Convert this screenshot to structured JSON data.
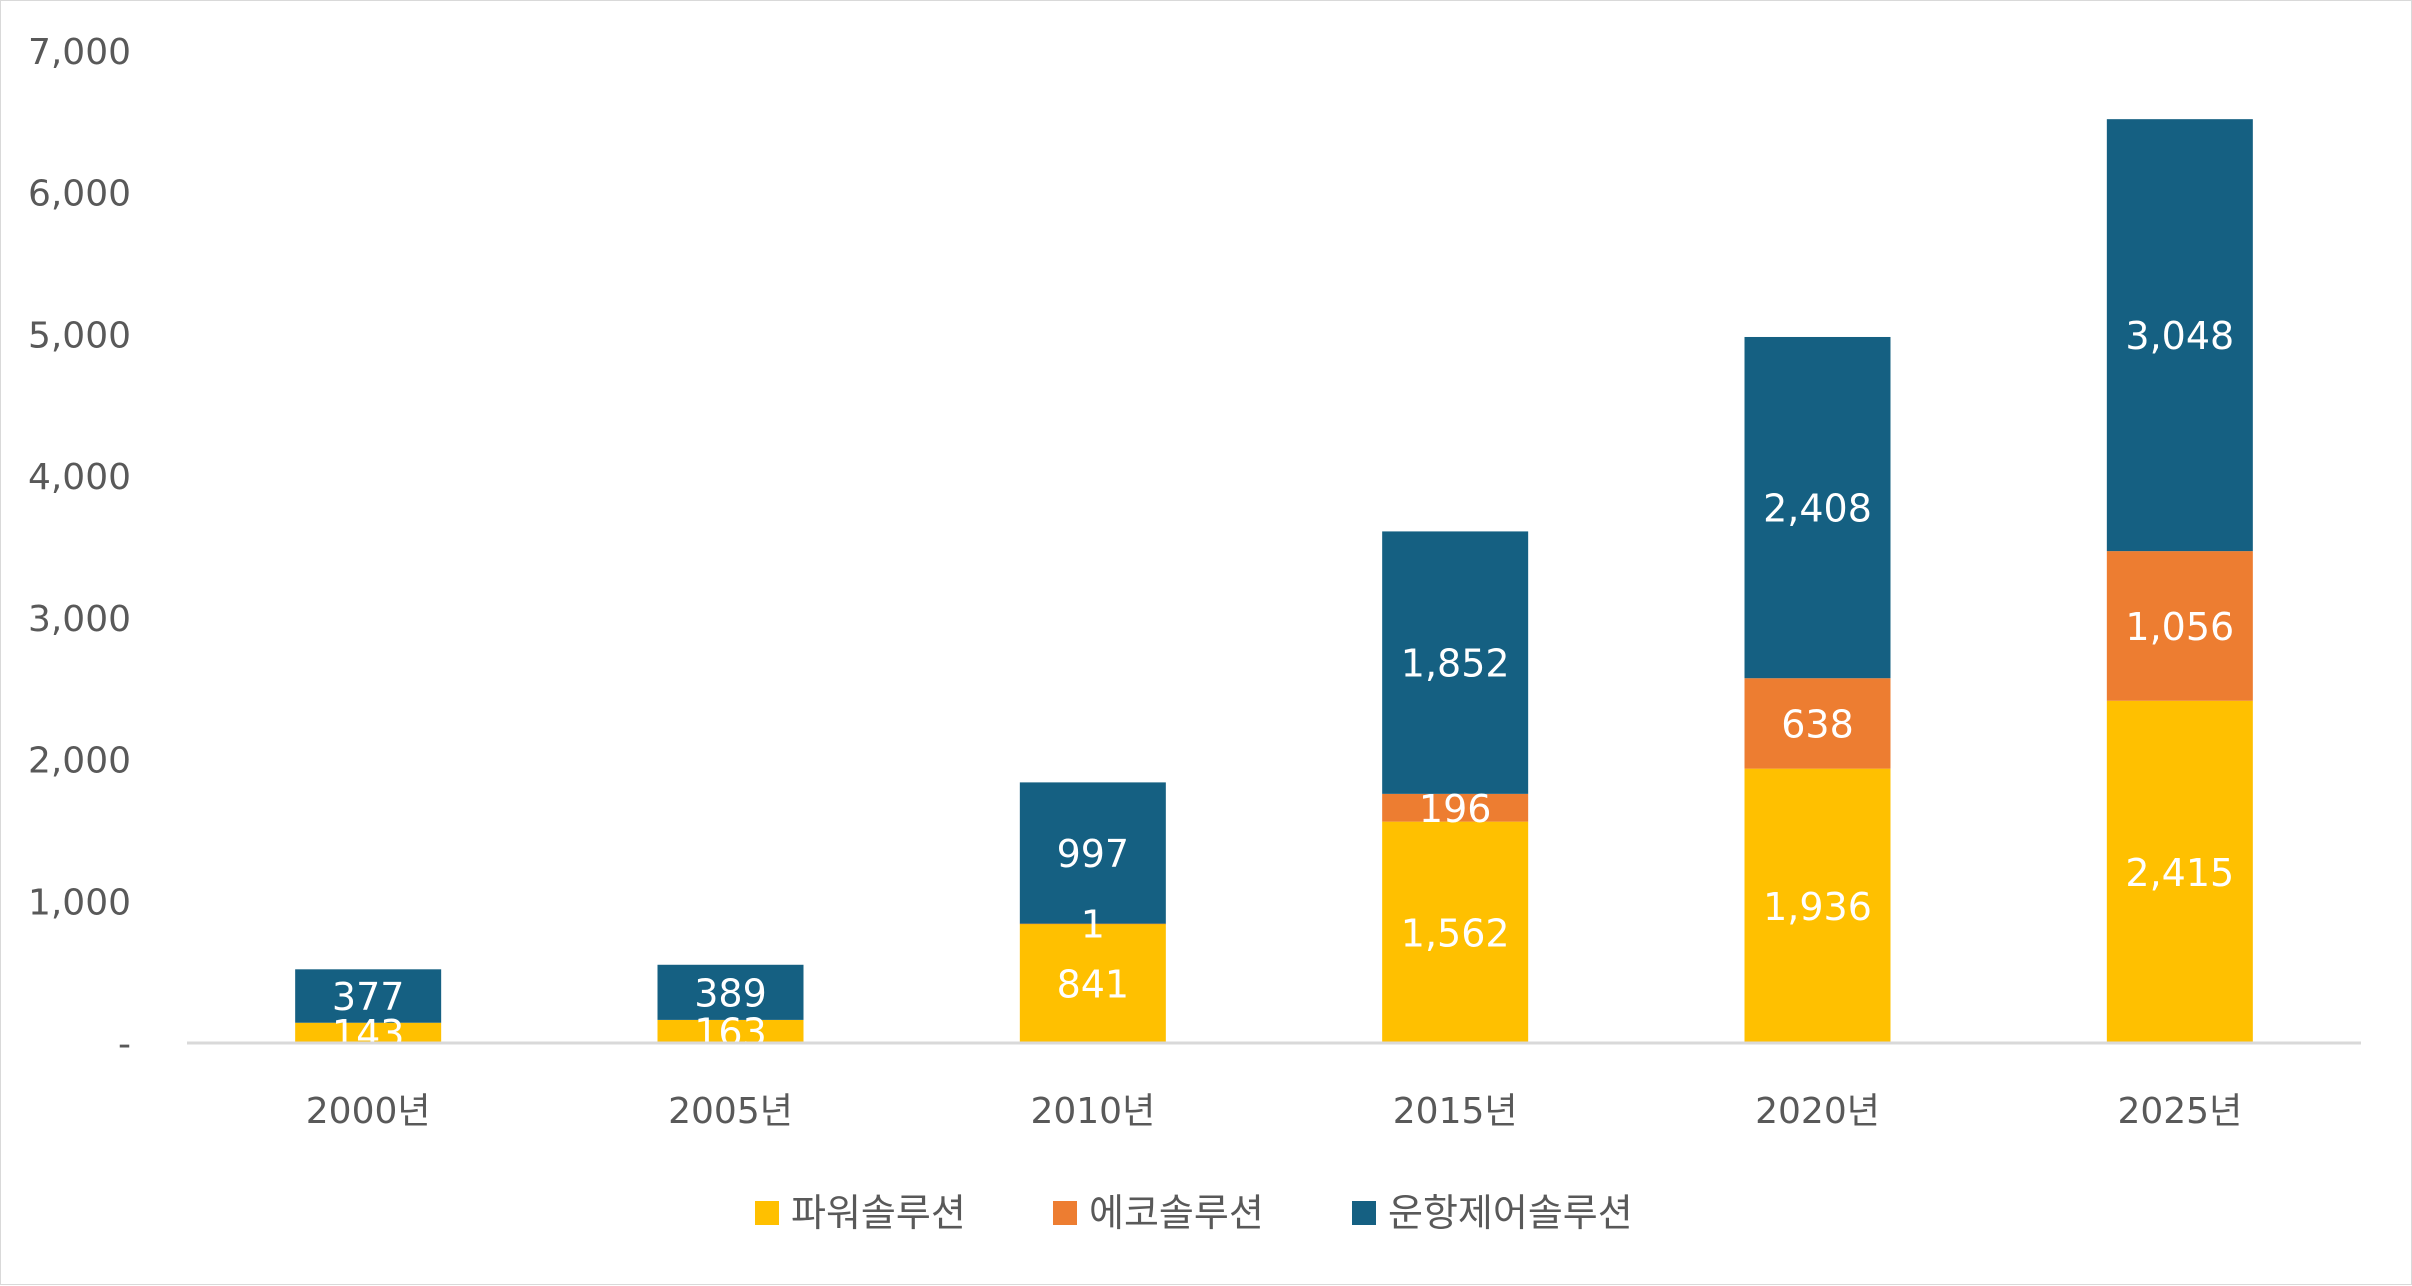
{
  "chart_data": {
    "type": "bar",
    "stacked": true,
    "title": "",
    "xlabel": "",
    "ylabel": "",
    "categories": [
      "2000년",
      "2005년",
      "2010년",
      "2015년",
      "2020년",
      "2025년"
    ],
    "series": [
      {
        "name": "파워솔루션",
        "color": "#ffc000",
        "values": [
          143,
          163,
          841,
          1562,
          1936,
          2415
        ],
        "labels": [
          "143",
          "163",
          "841",
          "1,562",
          "1,936",
          "2,415"
        ]
      },
      {
        "name": "에코솔루션",
        "color": "#ed7d31",
        "values": [
          0,
          0,
          1,
          196,
          638,
          1056
        ],
        "labels": [
          "",
          "",
          "1",
          "196",
          "638",
          "1,056"
        ]
      },
      {
        "name": "운항제어솔루션",
        "color": "#156082",
        "values": [
          377,
          389,
          997,
          1852,
          2408,
          3048
        ],
        "labels": [
          "377",
          "389",
          "997",
          "1,852",
          "2,408",
          "3,048"
        ]
      }
    ],
    "ylim": [
      0,
      7000
    ],
    "yticks": [
      0,
      1000,
      2000,
      3000,
      4000,
      5000,
      6000,
      7000
    ],
    "ytick_labels": [
      "-",
      "1,000",
      "2,000",
      "3,000",
      "4,000",
      "5,000",
      "6,000",
      "7,000"
    ],
    "grid": false,
    "legend_position": "bottom"
  }
}
